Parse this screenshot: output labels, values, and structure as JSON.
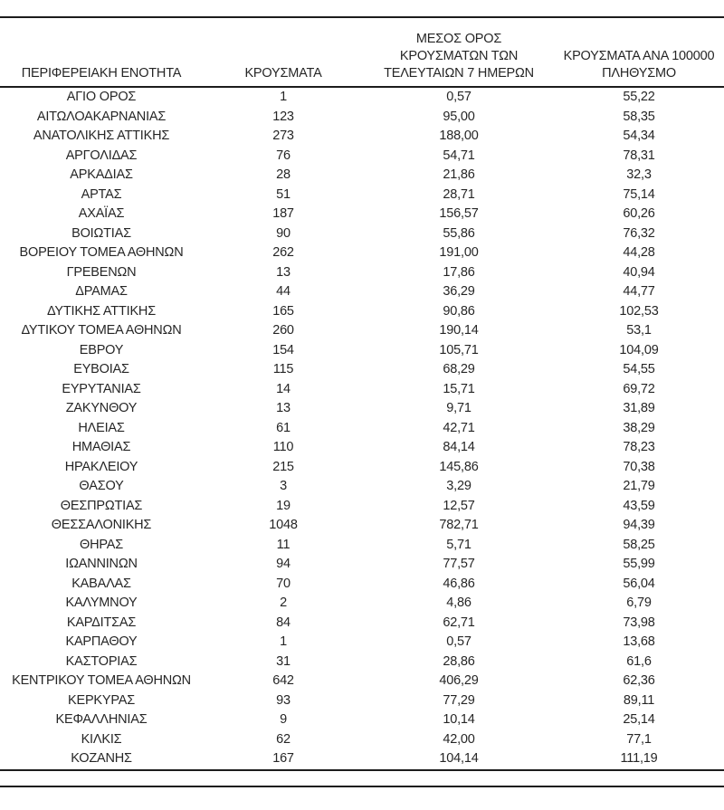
{
  "document": {
    "type": "regional-covid-case-statistics-table"
  },
  "colors": {
    "background": "#ffffff",
    "text": "#262626",
    "rule": "#1c1c1c"
  },
  "table": {
    "columns": [
      {
        "name": "regional-unit",
        "lines": [
          "ΠΕΡΙΦΕΡΕΙΑΚΗ ΕΝΟΤΗΤΑ"
        ]
      },
      {
        "name": "cases",
        "lines": [
          "ΚΡΟΥΣΜΑΤΑ"
        ]
      },
      {
        "name": "avg-cases-last-7-days",
        "lines": [
          "ΜΕΣΟΣ ΟΡΟΣ",
          "ΚΡΟΥΣΜΑΤΩΝ ΤΩΝ",
          "ΤΕΛΕΥΤΑΙΩΝ 7 ΗΜΕΡΩΝ"
        ]
      },
      {
        "name": "cases-per-100000",
        "lines": [
          "ΚΡΟΥΣΜΑΤΑ ΑΝΑ 100000",
          "ΠΛΗΘΥΣΜΟ"
        ]
      }
    ],
    "rows": [
      [
        "ΑΓΙΟ ΟΡΟΣ",
        "1",
        "0,57",
        "55,22"
      ],
      [
        "ΑΙΤΩΛΟΑΚΑΡΝΑΝΙΑΣ",
        "123",
        "95,00",
        "58,35"
      ],
      [
        "ΑΝΑΤΟΛΙΚΗΣ ΑΤΤΙΚΗΣ",
        "273",
        "188,00",
        "54,34"
      ],
      [
        "ΑΡΓΟΛΙΔΑΣ",
        "76",
        "54,71",
        "78,31"
      ],
      [
        "ΑΡΚΑΔΙΑΣ",
        "28",
        "21,86",
        "32,3"
      ],
      [
        "ΑΡΤΑΣ",
        "51",
        "28,71",
        "75,14"
      ],
      [
        "ΑΧΑΪΑΣ",
        "187",
        "156,57",
        "60,26"
      ],
      [
        "ΒΟΙΩΤΙΑΣ",
        "90",
        "55,86",
        "76,32"
      ],
      [
        "ΒΟΡΕΙΟΥ ΤΟΜΕΑ ΑΘΗΝΩΝ",
        "262",
        "191,00",
        "44,28"
      ],
      [
        "ΓΡΕΒΕΝΩΝ",
        "13",
        "17,86",
        "40,94"
      ],
      [
        "ΔΡΑΜΑΣ",
        "44",
        "36,29",
        "44,77"
      ],
      [
        "ΔΥΤΙΚΗΣ ΑΤΤΙΚΗΣ",
        "165",
        "90,86",
        "102,53"
      ],
      [
        "ΔΥΤΙΚΟΥ ΤΟΜΕΑ ΑΘΗΝΩΝ",
        "260",
        "190,14",
        "53,1"
      ],
      [
        "ΕΒΡΟΥ",
        "154",
        "105,71",
        "104,09"
      ],
      [
        "ΕΥΒΟΙΑΣ",
        "115",
        "68,29",
        "54,55"
      ],
      [
        "ΕΥΡΥΤΑΝΙΑΣ",
        "14",
        "15,71",
        "69,72"
      ],
      [
        "ΖΑΚΥΝΘΟΥ",
        "13",
        "9,71",
        "31,89"
      ],
      [
        "ΗΛΕΙΑΣ",
        "61",
        "42,71",
        "38,29"
      ],
      [
        "ΗΜΑΘΙΑΣ",
        "110",
        "84,14",
        "78,23"
      ],
      [
        "ΗΡΑΚΛΕΙΟΥ",
        "215",
        "145,86",
        "70,38"
      ],
      [
        "ΘΑΣΟΥ",
        "3",
        "3,29",
        "21,79"
      ],
      [
        "ΘΕΣΠΡΩΤΙΑΣ",
        "19",
        "12,57",
        "43,59"
      ],
      [
        "ΘΕΣΣΑΛΟΝΙΚΗΣ",
        "1048",
        "782,71",
        "94,39"
      ],
      [
        "ΘΗΡΑΣ",
        "11",
        "5,71",
        "58,25"
      ],
      [
        "ΙΩΑΝΝΙΝΩΝ",
        "94",
        "77,57",
        "55,99"
      ],
      [
        "ΚΑΒΑΛΑΣ",
        "70",
        "46,86",
        "56,04"
      ],
      [
        "ΚΑΛΥΜΝΟΥ",
        "2",
        "4,86",
        "6,79"
      ],
      [
        "ΚΑΡΔΙΤΣΑΣ",
        "84",
        "62,71",
        "73,98"
      ],
      [
        "ΚΑΡΠΑΘΟΥ",
        "1",
        "0,57",
        "13,68"
      ],
      [
        "ΚΑΣΤΟΡΙΑΣ",
        "31",
        "28,86",
        "61,6"
      ],
      [
        "ΚΕΝΤΡΙΚΟΥ ΤΟΜΕΑ ΑΘΗΝΩΝ",
        "642",
        "406,29",
        "62,36"
      ],
      [
        "ΚΕΡΚΥΡΑΣ",
        "93",
        "77,29",
        "89,11"
      ],
      [
        "ΚΕΦΑΛΛΗΝΙΑΣ",
        "9",
        "10,14",
        "25,14"
      ],
      [
        "ΚΙΛΚΙΣ",
        "62",
        "42,00",
        "77,1"
      ],
      [
        "ΚΟΖΑΝΗΣ",
        "167",
        "104,14",
        "111,19"
      ]
    ]
  }
}
